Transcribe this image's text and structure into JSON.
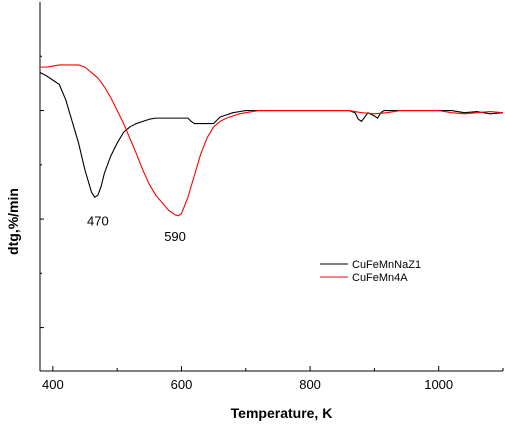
{
  "chart_data": {
    "type": "line",
    "title": "",
    "xlabel": "Temperature, K",
    "ylabel": "dtg,%/min",
    "xlim": [
      380,
      1100
    ],
    "ylim": [
      -2.4,
      1.0
    ],
    "x_ticks": [
      "400",
      "600",
      "800",
      "1000"
    ],
    "x_tick_values": [
      400,
      600,
      800,
      1000
    ],
    "y_tick_labels_shown": false,
    "grid": false,
    "legend_position": "center-right",
    "annotations": [
      {
        "text": "470",
        "x": 470,
        "y": -1.06
      },
      {
        "text": "590",
        "x": 590,
        "y": -1.2
      }
    ],
    "series": [
      {
        "name": "CuFeMnNaZ1",
        "color": "#000000",
        "x": [
          380,
          390,
          400,
          410,
          420,
          430,
          440,
          450,
          460,
          465,
          470,
          475,
          480,
          490,
          500,
          510,
          520,
          530,
          540,
          550,
          560,
          570,
          580,
          590,
          600,
          610,
          615,
          620,
          630,
          640,
          650,
          660,
          670,
          680,
          690,
          700,
          710,
          720,
          730,
          740,
          760,
          780,
          800,
          820,
          840,
          860,
          870,
          875,
          880,
          885,
          890,
          900,
          905,
          910,
          915,
          920,
          940,
          960,
          980,
          1000,
          1020,
          1040,
          1060,
          1080,
          1100
        ],
        "y": [
          0.35,
          0.32,
          0.28,
          0.24,
          0.1,
          -0.1,
          -0.3,
          -0.55,
          -0.75,
          -0.8,
          -0.78,
          -0.7,
          -0.58,
          -0.42,
          -0.3,
          -0.2,
          -0.15,
          -0.12,
          -0.1,
          -0.08,
          -0.07,
          -0.07,
          -0.07,
          -0.07,
          -0.07,
          -0.07,
          -0.1,
          -0.12,
          -0.12,
          -0.12,
          -0.12,
          -0.06,
          -0.04,
          -0.02,
          -0.01,
          0.0,
          0.0,
          0.0,
          0.0,
          0.0,
          0.0,
          0.0,
          0.0,
          0.0,
          0.0,
          0.0,
          -0.02,
          -0.08,
          -0.1,
          -0.06,
          -0.02,
          -0.05,
          -0.07,
          -0.02,
          0.0,
          0.0,
          0.0,
          0.0,
          0.0,
          0.0,
          0.0,
          -0.02,
          -0.01,
          -0.03,
          -0.02
        ]
      },
      {
        "name": "CuFeMn4A",
        "color": "#ff0000",
        "x": [
          380,
          390,
          400,
          410,
          420,
          430,
          440,
          450,
          460,
          470,
          480,
          490,
          500,
          510,
          520,
          530,
          540,
          550,
          560,
          570,
          580,
          590,
          595,
          600,
          610,
          620,
          630,
          640,
          650,
          660,
          670,
          680,
          690,
          700,
          710,
          720,
          740,
          760,
          780,
          800,
          820,
          840,
          860,
          880,
          900,
          920,
          940,
          960,
          980,
          1000,
          1020,
          1040,
          1060,
          1080,
          1100
        ],
        "y": [
          0.4,
          0.4,
          0.41,
          0.42,
          0.42,
          0.42,
          0.42,
          0.4,
          0.35,
          0.3,
          0.22,
          0.12,
          0.0,
          -0.12,
          -0.26,
          -0.4,
          -0.55,
          -0.68,
          -0.78,
          -0.85,
          -0.92,
          -0.96,
          -0.97,
          -0.95,
          -0.8,
          -0.6,
          -0.4,
          -0.25,
          -0.15,
          -0.1,
          -0.07,
          -0.05,
          -0.03,
          -0.02,
          -0.01,
          0.0,
          0.0,
          0.0,
          0.0,
          0.0,
          0.0,
          0.0,
          0.0,
          -0.02,
          -0.03,
          -0.02,
          0.0,
          0.0,
          0.0,
          0.0,
          -0.02,
          -0.03,
          -0.02,
          -0.01,
          -0.02
        ]
      }
    ]
  }
}
